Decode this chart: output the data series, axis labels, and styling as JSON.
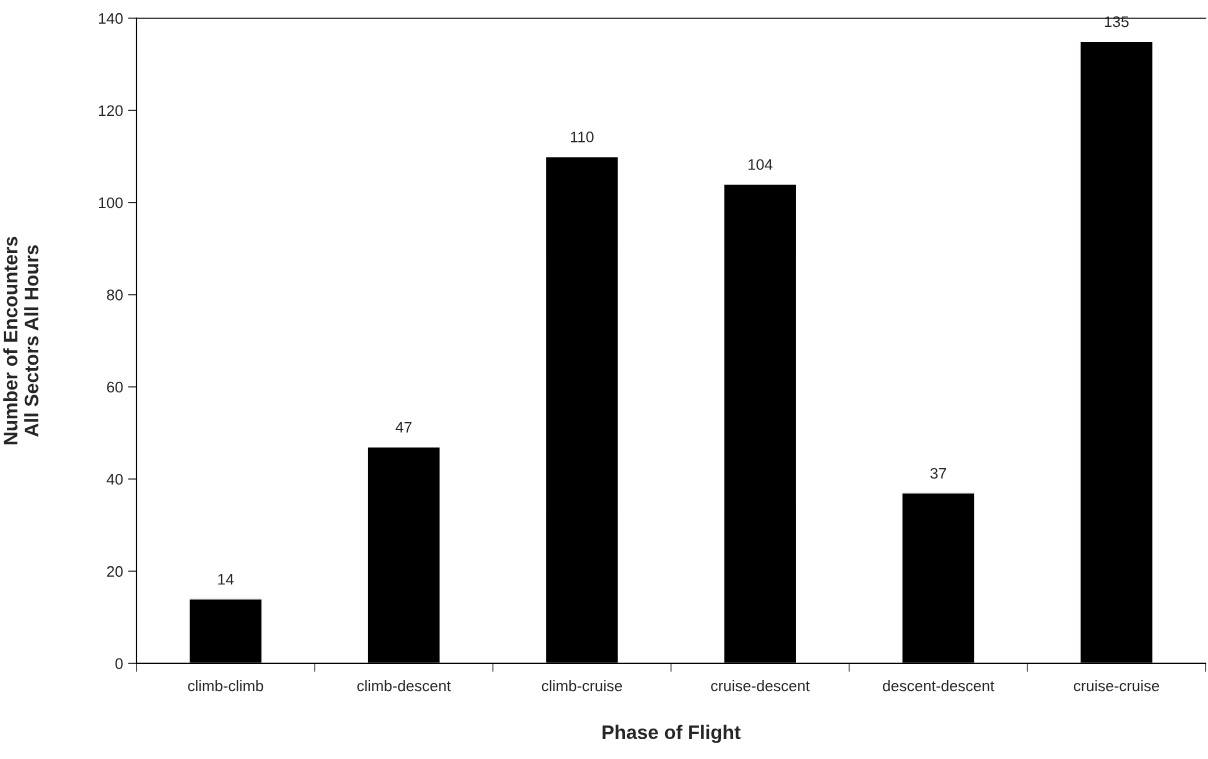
{
  "chart_data": {
    "type": "bar",
    "xlabel": "Phase of Flight",
    "ylabel": "Number of Encounters\nAll Sectors All Hours",
    "categories": [
      "climb-climb",
      "climb-descent",
      "climb-cruise",
      "cruise-descent",
      "descent-descent",
      "cruise-cruise"
    ],
    "values": [
      14,
      47,
      110,
      104,
      37,
      135
    ],
    "color": "#000000",
    "ylim": [
      0,
      140
    ],
    "yticks": [
      0,
      20,
      40,
      60,
      80,
      100,
      120,
      140
    ],
    "grid": false,
    "data_labels": true,
    "legend": false
  }
}
